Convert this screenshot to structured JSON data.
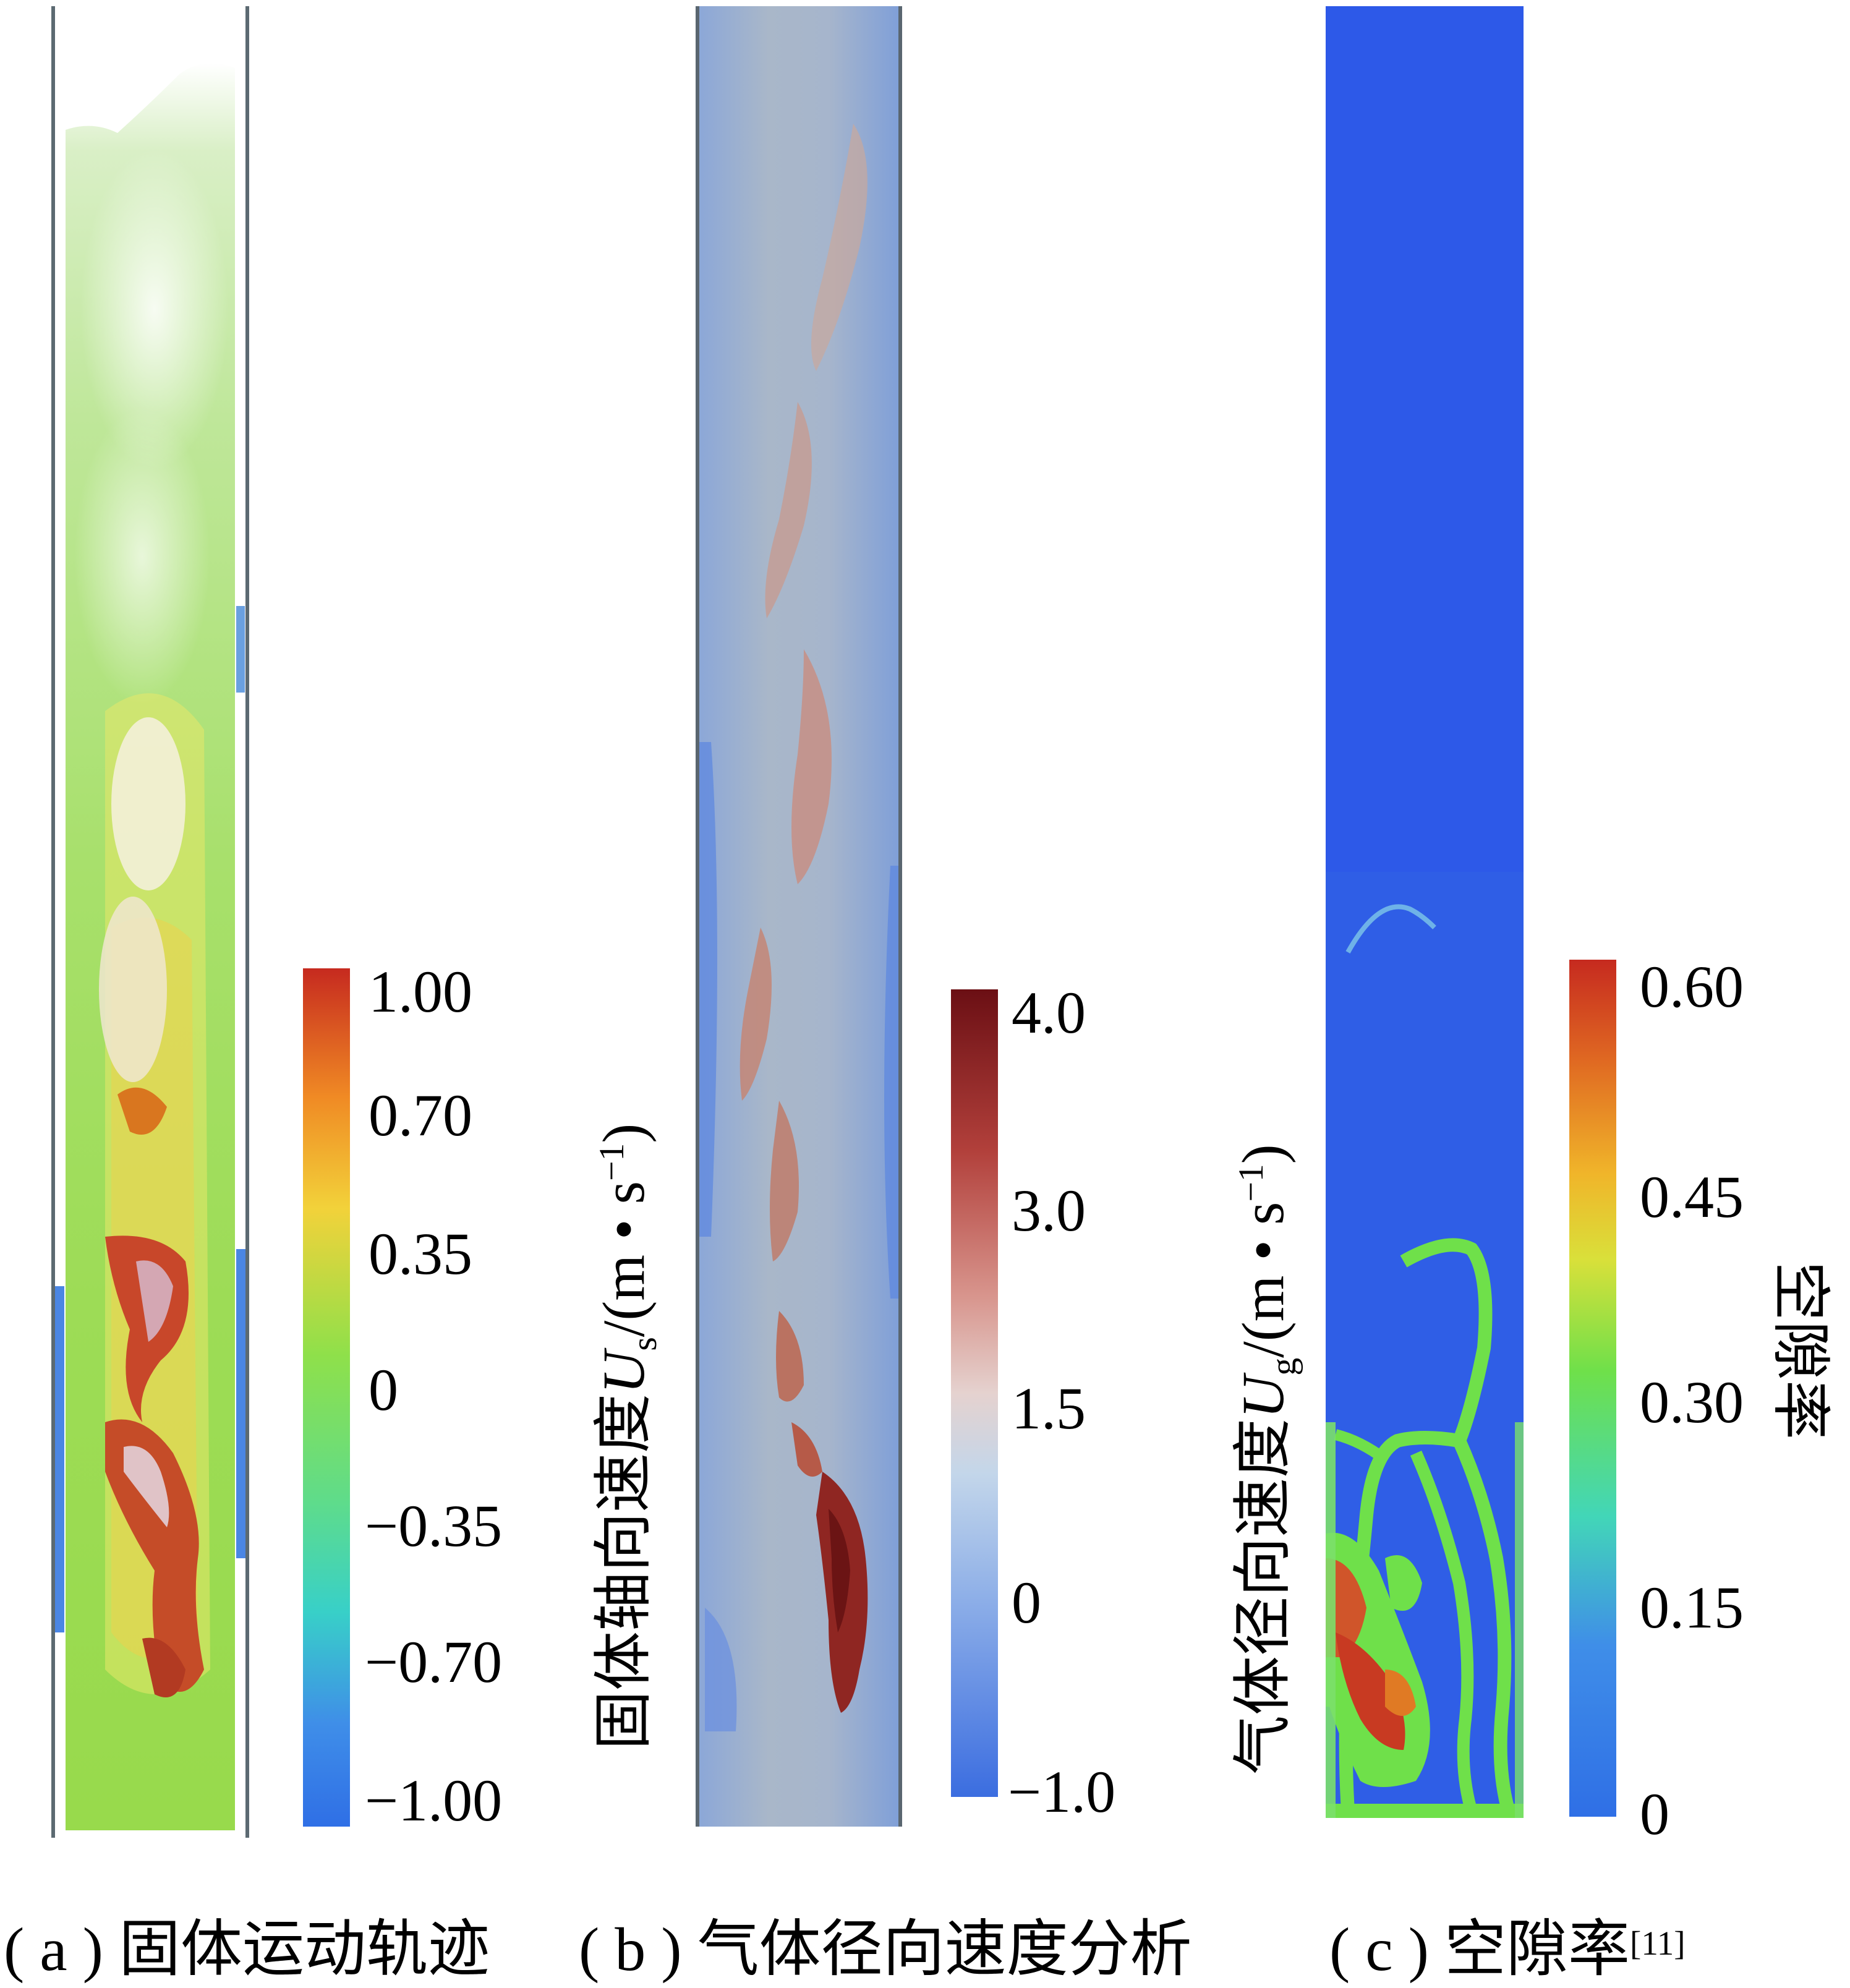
{
  "panels": [
    {
      "id": "a",
      "caption": "( a ) 固体运动轨迹",
      "colorbar": {
        "title_prefix": "固体轴向速度",
        "title_symbol": "U",
        "title_subscript": "s",
        "title_unit_open": "/(m • s",
        "title_unit_sup": "−1",
        "title_unit_close": ")",
        "ticks": [
          "1.00",
          "0.70",
          "0.35",
          "0",
          "−0.35",
          "−0.70",
          "−1.00"
        ],
        "range": [
          -1.0,
          1.0
        ],
        "colors": [
          "#d32f2f",
          "#f08a24",
          "#f2d23a",
          "#86e04a",
          "#39d6b0",
          "#3f8ee8",
          "#2f6fe6"
        ]
      }
    },
    {
      "id": "b",
      "caption": "( b ) 气体径向速度分析",
      "colorbar": {
        "title_prefix": "气体径向速度",
        "title_symbol": "U",
        "title_subscript": "g",
        "title_unit_open": "/(m • s",
        "title_unit_sup": "−1",
        "title_unit_close": ")",
        "ticks": [
          "4.0",
          "3.0",
          "1.5",
          "0",
          "−1.0"
        ],
        "range": [
          -1.0,
          4.0
        ],
        "colors": [
          "#6b0f14",
          "#c8574f",
          "#e3b3ad",
          "#bcd3ea",
          "#7aa2e6",
          "#3f6fe0"
        ]
      }
    },
    {
      "id": "c",
      "caption": "( c ) 空隙率",
      "caption_ref": "[11]",
      "colorbar": {
        "title": "空隙率",
        "ticks": [
          "0.60",
          "0.45",
          "0.30",
          "0.15",
          "0"
        ],
        "range": [
          0,
          0.6
        ],
        "colors": [
          "#c62a1f",
          "#f07f1e",
          "#e7d83a",
          "#6ee04a",
          "#3cd2c8",
          "#3b7be6",
          "#2f6fe6"
        ]
      }
    }
  ]
}
